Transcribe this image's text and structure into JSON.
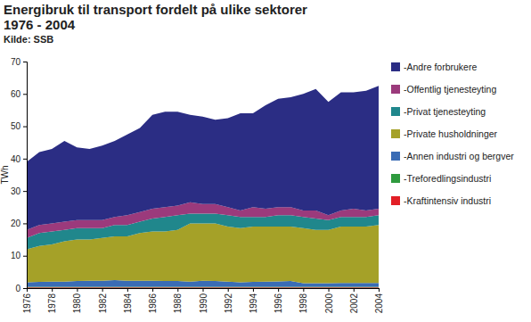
{
  "chart_data": {
    "type": "area",
    "stacked": true,
    "title": "Energibruk til transport fordelt på ulike sektorer\n1976 - 2004",
    "subtitle": "Kilde: SSB",
    "y_label": "TWh",
    "x": [
      1976,
      1977,
      1978,
      1979,
      1980,
      1981,
      1982,
      1983,
      1984,
      1985,
      1986,
      1987,
      1988,
      1989,
      1990,
      1991,
      1992,
      1993,
      1994,
      1995,
      1996,
      1997,
      1998,
      1999,
      2000,
      2001,
      2002,
      2003,
      2004
    ],
    "xlim": [
      1976,
      2004
    ],
    "xticks": [
      1976,
      1978,
      1980,
      1982,
      1984,
      1986,
      1988,
      1990,
      1992,
      1994,
      1996,
      1998,
      2000,
      2002,
      2004
    ],
    "ylim": [
      0,
      70
    ],
    "yticks": [
      0,
      10,
      20,
      30,
      40,
      50,
      60,
      70
    ],
    "grid": false,
    "legend": "right",
    "series": [
      {
        "name": "-Kraftintensiv industri",
        "color": "#e21f26",
        "values": [
          0.2,
          0.2,
          0.2,
          0.2,
          0.2,
          0.2,
          0.2,
          0.2,
          0.2,
          0.2,
          0.2,
          0.2,
          0.2,
          0.2,
          0.2,
          0.2,
          0.2,
          0.2,
          0.2,
          0.2,
          0.2,
          0.2,
          0.2,
          0.2,
          0.2,
          0.2,
          0.2,
          0.2,
          0.2
        ]
      },
      {
        "name": "-Treforedlingsindustri",
        "color": "#2e9a3e",
        "values": [
          0.2,
          0.2,
          0.2,
          0.2,
          0.2,
          0.2,
          0.2,
          0.2,
          0.2,
          0.2,
          0.2,
          0.2,
          0.2,
          0.2,
          0.2,
          0.2,
          0.2,
          0.2,
          0.2,
          0.2,
          0.2,
          0.2,
          0.2,
          0.2,
          0.2,
          0.2,
          0.2,
          0.2,
          0.2
        ]
      },
      {
        "name": "-Annen industri og bergver",
        "color": "#3a6cb5",
        "values": [
          1.4,
          1.5,
          1.6,
          1.6,
          1.8,
          1.9,
          1.9,
          2.1,
          1.9,
          1.9,
          1.9,
          1.8,
          1.8,
          1.6,
          1.9,
          1.8,
          1.6,
          1.4,
          1.5,
          1.6,
          1.7,
          1.8,
          1.1,
          1.1,
          1.1,
          1.2,
          1.2,
          1.2,
          1.2
        ]
      },
      {
        "name": "-Private husholdninger",
        "color": "#a5a128",
        "values": [
          10.2,
          11.1,
          11.5,
          12.5,
          12.8,
          12.7,
          13.2,
          13.5,
          13.7,
          14.7,
          15.2,
          15.3,
          15.8,
          18,
          17.7,
          17.8,
          17,
          16.7,
          17.1,
          17,
          16.9,
          16.8,
          17,
          16.5,
          16.5,
          17.4,
          17.4,
          17.4,
          17.9
        ]
      },
      {
        "name": "-Privat tjenesteyting",
        "color": "#20878c",
        "values": [
          3.5,
          4,
          4,
          3.5,
          3.5,
          3.5,
          3,
          3.5,
          3.5,
          3.5,
          4,
          4.5,
          4.5,
          3,
          3,
          3,
          3.5,
          3.5,
          3,
          3,
          3.5,
          3.5,
          3.5,
          3.5,
          3,
          3,
          3,
          3,
          3
        ]
      },
      {
        "name": "-Offentlig tjenesteyting",
        "color": "#9b3a7c",
        "values": [
          2.5,
          2.5,
          2.5,
          2.5,
          2.5,
          2.5,
          2.5,
          2.5,
          3,
          3,
          3,
          3,
          3,
          3.5,
          3,
          3,
          2.5,
          2,
          3,
          2.5,
          2.5,
          2.5,
          2,
          2.5,
          1.5,
          2,
          2.5,
          2,
          2
        ]
      },
      {
        "name": "-Andre forbrukere",
        "color": "#2b2d84",
        "values": [
          21,
          22.5,
          23,
          25,
          22.5,
          22,
          23,
          23.5,
          25,
          26,
          29,
          29.5,
          29,
          27,
          27,
          26,
          27.5,
          30,
          29,
          32,
          33.5,
          34,
          36,
          37.5,
          35,
          36.5,
          36,
          37,
          38
        ]
      }
    ]
  }
}
